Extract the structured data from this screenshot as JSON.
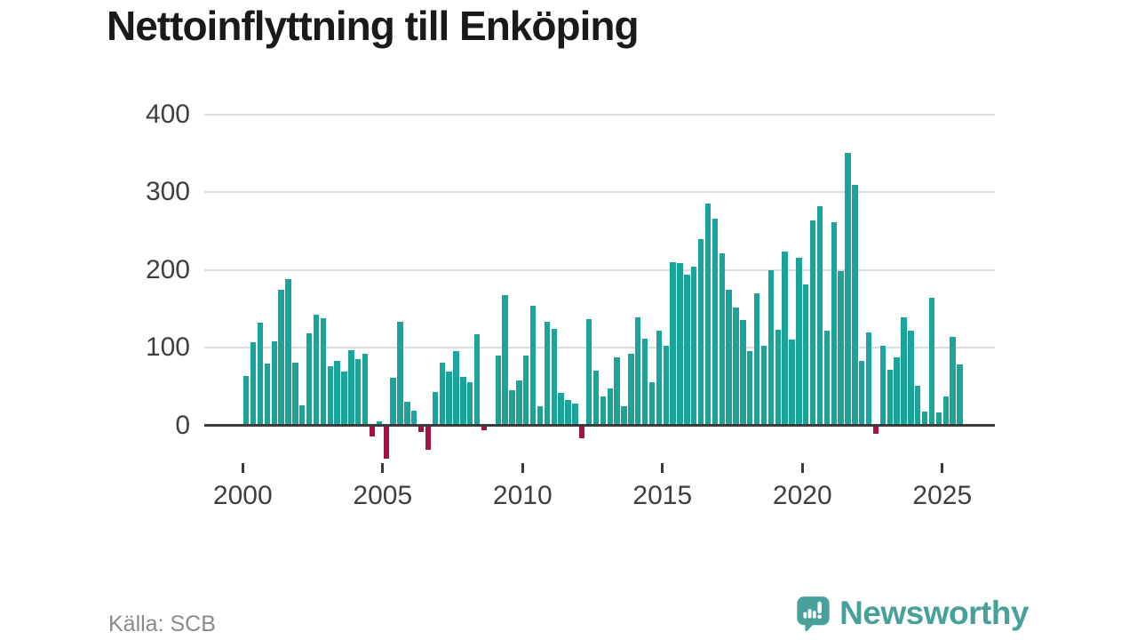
{
  "title": "Nettoinflyttning till Enköping",
  "source": "Källa: SCB",
  "logo": {
    "text": "Newsworthy"
  },
  "colors": {
    "positive": "#1ba49a",
    "negative": "#a31246",
    "axis": "#3b3b3b",
    "grid": "#dcdcdc",
    "title_text": "#1a1a1a",
    "tick_label": "#3f3f3f",
    "source_text": "#8a8a8a",
    "logo_teal": "#47a099"
  },
  "chart_data": {
    "type": "bar",
    "title": "Nettoinflyttning till Enköping",
    "xlabel": "",
    "ylabel": "",
    "x_unit": "quarter",
    "start_year": 2000,
    "start_quarter": 1,
    "end_year": 2025,
    "end_quarter": 3,
    "values": [
      64,
      107,
      132,
      80,
      108,
      175,
      188,
      81,
      26,
      118,
      143,
      138,
      76,
      83,
      69,
      97,
      85,
      92,
      -13,
      5,
      -42,
      61,
      133,
      30,
      19,
      -8,
      -30,
      43,
      81,
      69,
      95,
      62,
      55,
      117,
      -5,
      0,
      90,
      168,
      45,
      58,
      90,
      154,
      25,
      133,
      124,
      42,
      33,
      28,
      -16,
      137,
      70,
      37,
      47,
      88,
      25,
      92,
      139,
      112,
      56,
      122,
      102,
      210,
      209,
      194,
      204,
      240,
      286,
      266,
      222,
      175,
      152,
      136,
      96,
      170,
      102,
      200,
      123,
      224,
      110,
      216,
      181,
      264,
      282,
      122,
      262,
      199,
      351,
      310,
      83,
      120,
      -10,
      102,
      71,
      87,
      139,
      122,
      51,
      18,
      164,
      17,
      37,
      114,
      78
    ],
    "x_tick_labels": [
      "2000",
      "2005",
      "2010",
      "2015",
      "2020",
      "2025"
    ],
    "x_tick_years": [
      2000,
      2005,
      2010,
      2015,
      2020,
      2025
    ],
    "y_tick_labels": [
      "0",
      "100",
      "200",
      "300",
      "400"
    ],
    "y_tick_values": [
      0,
      100,
      200,
      300,
      400
    ],
    "ylim": [
      -60,
      400
    ],
    "grid": "horizontal",
    "legend": "none",
    "bar_color_positive": "#1ba49a",
    "bar_color_negative": "#a31246"
  }
}
